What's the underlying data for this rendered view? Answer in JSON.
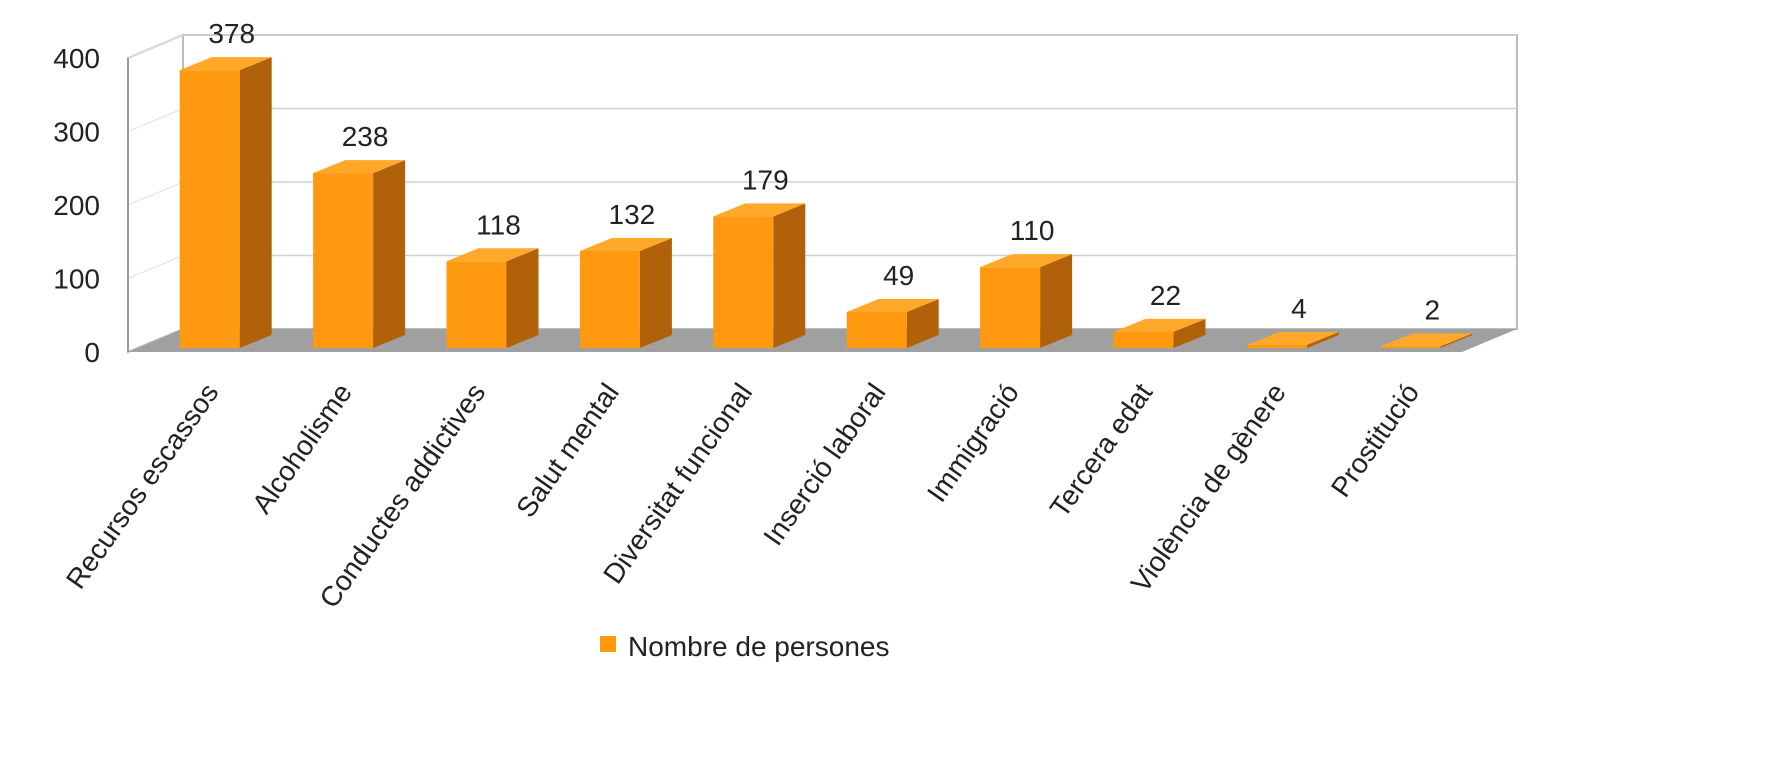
{
  "chart_data": {
    "type": "bar",
    "three_d": true,
    "categories": [
      "Recursos escassos",
      "Alcoholisme",
      "Conductes addictives",
      "Salut mental",
      "Diversitat funcional",
      "Inserció laboral",
      "Immigració",
      "Tercera edat",
      "Violència de gènere",
      "Prostitució"
    ],
    "series": [
      {
        "name": "Nombre de persones",
        "values": [
          378,
          238,
          118,
          132,
          179,
          49,
          110,
          22,
          4,
          2
        ],
        "color": "#FF9910",
        "side_color": "#B0610A",
        "top_color": "#FFA82A"
      }
    ],
    "value_labels": [
      "378",
      "238",
      "118",
      "132",
      "179",
      "49",
      "110",
      "22",
      "4",
      "2"
    ],
    "y_ticks": [
      "0",
      "100",
      "200",
      "300",
      "400"
    ],
    "ylim": [
      0,
      400
    ],
    "grid": true,
    "legend_position": "bottom",
    "floor_color": "#A0A0A0",
    "grid_color": "#D0D0D0"
  }
}
